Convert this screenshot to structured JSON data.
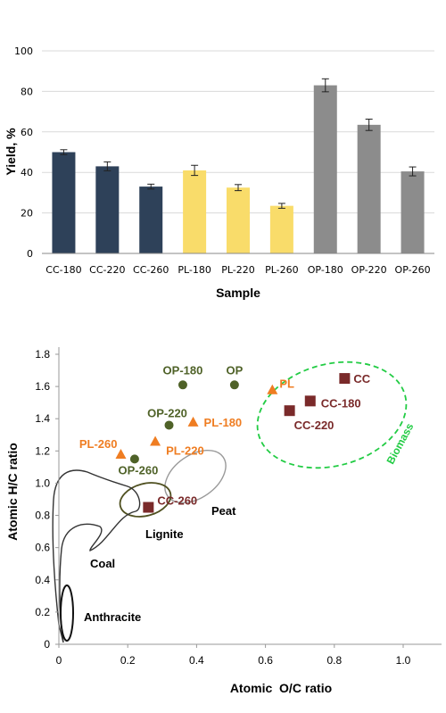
{
  "chart_data": [
    {
      "type": "bar",
      "xlabel": "Sample",
      "ylabel": "Yield, %",
      "ylim": [
        0,
        100
      ],
      "yticks": [
        "0",
        "20",
        "40",
        "60",
        "80",
        "100"
      ],
      "grid": true,
      "categories": [
        "CC-180",
        "CC-220",
        "CC-260",
        "PL-180",
        "PL-220",
        "PL-260",
        "OP-180",
        "OP-220",
        "OP-260"
      ],
      "values": [
        50,
        43,
        33,
        41,
        32.5,
        23.5,
        83,
        63.5,
        40.5
      ],
      "errors": [
        1.2,
        2.2,
        1.2,
        2.5,
        1.5,
        1.2,
        3.2,
        2.8,
        2.2
      ],
      "bar_colors": [
        "#2e4159",
        "#2e4159",
        "#2e4159",
        "#f9dc6a",
        "#f9dc6a",
        "#f9dc6a",
        "#8c8c8c",
        "#8c8c8c",
        "#8c8c8c"
      ]
    },
    {
      "type": "scatter",
      "xlabel": "Atomic  O/C ratio",
      "ylabel": "Atomic H/C ratio",
      "xlim": [
        0,
        1.1
      ],
      "ylim": [
        0,
        1.8
      ],
      "xticks": [
        "0",
        "0.2",
        "0.4",
        "0.6",
        "0.8",
        "1.0"
      ],
      "yticks": [
        "0",
        "0.2",
        "0.4",
        "0.6",
        "0.8",
        "1.0",
        "1.2",
        "1.4",
        "1.6",
        "1.8"
      ],
      "grid": false,
      "series": [
        {
          "marker": "square",
          "color": "#7a2a2a",
          "points": [
            {
              "label": "CC",
              "x": 0.83,
              "y": 1.65
            },
            {
              "label": "CC-180",
              "x": 0.73,
              "y": 1.51
            },
            {
              "label": "CC-220",
              "x": 0.67,
              "y": 1.45
            },
            {
              "label": "CC-260",
              "x": 0.26,
              "y": 0.85
            }
          ]
        },
        {
          "marker": "triangle",
          "color": "#ef7d22",
          "points": [
            {
              "label": "PL",
              "x": 0.62,
              "y": 1.58
            },
            {
              "label": "PL-180",
              "x": 0.39,
              "y": 1.38
            },
            {
              "label": "PL-220",
              "x": 0.28,
              "y": 1.26
            },
            {
              "label": "PL-260",
              "x": 0.18,
              "y": 1.18
            }
          ]
        },
        {
          "marker": "circle",
          "color": "#4f6228",
          "points": [
            {
              "label": "OP",
              "x": 0.51,
              "y": 1.61
            },
            {
              "label": "OP-180",
              "x": 0.36,
              "y": 1.61
            },
            {
              "label": "OP-220",
              "x": 0.32,
              "y": 1.36
            },
            {
              "label": "OP-260",
              "x": 0.22,
              "y": 1.15
            }
          ]
        }
      ],
      "regions": [
        {
          "label": "Biomass",
          "color": "#22cc44"
        },
        {
          "label": "Peat",
          "color": "#999999"
        },
        {
          "label": "Lignite",
          "color": "#4f5020"
        },
        {
          "label": "Coal",
          "color": "#333333"
        },
        {
          "label": "Anthracite",
          "color": "#111111"
        }
      ]
    }
  ]
}
